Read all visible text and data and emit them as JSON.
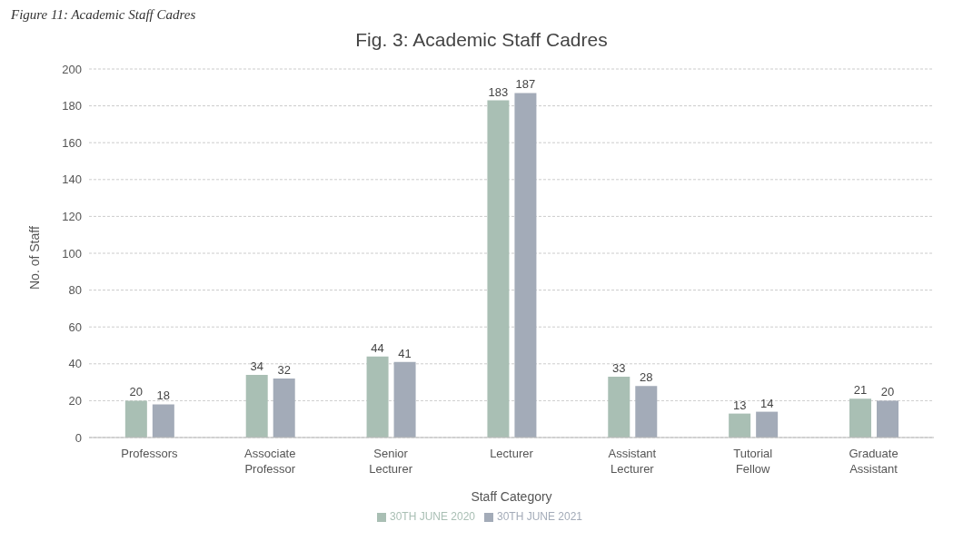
{
  "chart_data": {
    "type": "bar",
    "title": "Fig. 3: Academic Staff Cadres",
    "xlabel": "Staff Category",
    "ylabel": "No. of Staff",
    "annotations": [
      "Figure 11: Academic Staff Cadres"
    ],
    "categories": [
      "Professors",
      "Associate Professor",
      "Senior Lecturer",
      "Lecturer",
      "Assistant Lecturer",
      "Tutorial Fellow",
      "Graduate Assistant"
    ],
    "series": [
      {
        "name": "30TH JUNE 2020",
        "color": "#a9bfb4",
        "values": [
          20,
          34,
          44,
          183,
          33,
          13,
          21
        ]
      },
      {
        "name": "30TH JUNE 2021",
        "color": "#a3abb8",
        "values": [
          18,
          32,
          41,
          187,
          28,
          14,
          20
        ]
      }
    ],
    "ylim": [
      0,
      200
    ],
    "yticks": [
      0,
      20,
      40,
      60,
      80,
      100,
      120,
      140,
      160,
      180,
      200
    ],
    "grid": "y",
    "legend": "bottom",
    "data_labels": true
  }
}
